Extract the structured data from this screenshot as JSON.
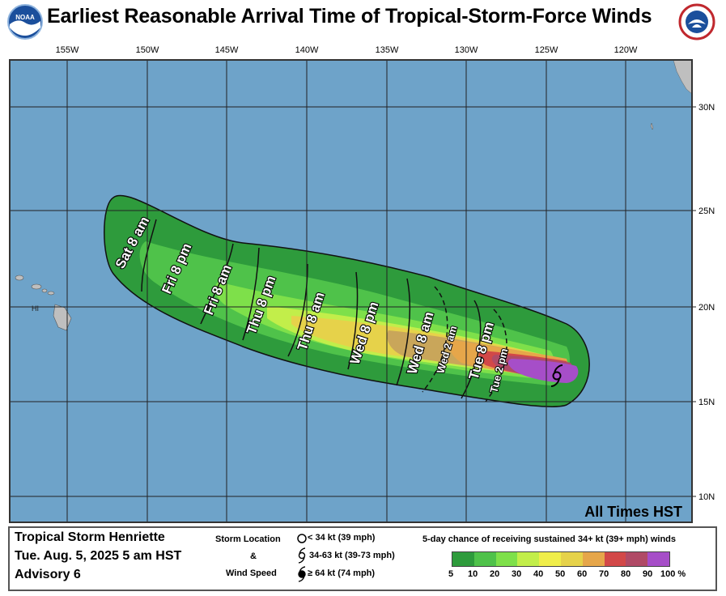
{
  "title": "Earliest Reasonable Arrival Time of Tropical-Storm-Force Winds",
  "logos": {
    "left": "NOAA",
    "right": "NATIONAL WEATHER SERVICE"
  },
  "colors": {
    "ocean": "#6ea3c9",
    "land": "#bfbfbf",
    "grid": "#222222",
    "border": "#333333"
  },
  "map": {
    "lon_labels": [
      "155W",
      "150W",
      "145W",
      "140W",
      "135W",
      "130W",
      "125W",
      "120W"
    ],
    "lat_labels": [
      "30N",
      "25N",
      "20N",
      "15N",
      "10N"
    ],
    "land_label": "HI",
    "timezone_note": "All Times HST",
    "time_labels": [
      "Sat 8 am",
      "Fri 8 pm",
      "Fri 8 am",
      "Thu 8 pm",
      "Thu 8 am",
      "Wed 8 pm",
      "Wed 8 am",
      "Wed 2 am",
      "Tue 8 pm",
      "Tue 2 pm"
    ],
    "storm_icon": "tropical-storm-icon"
  },
  "info": {
    "storm_name": "Tropical Storm Henriette",
    "datetime": "Tue. Aug. 5, 2025  5 am HST",
    "advisory": "Advisory 6"
  },
  "legend_storm": {
    "label_top": "Storm Location",
    "label_mid": "&",
    "label_bottom": "Wind Speed",
    "items": [
      "< 34 kt (39 mph)",
      "34-63 kt (39-73 mph)",
      "≥ 64 kt (74 mph)"
    ]
  },
  "legend_prob": {
    "title": "5-day chance of receiving sustained 34+ kt (39+ mph) winds",
    "ticks": [
      "5",
      "10",
      "20",
      "30",
      "40",
      "50",
      "60",
      "70",
      "80",
      "90",
      "100 %"
    ],
    "colors": [
      "#2e9b3c",
      "#4fc24a",
      "#7ee04a",
      "#c2ee4a",
      "#f0ee4a",
      "#e6d24a",
      "#e6a64a",
      "#e07a42",
      "#d24848",
      "#b04a66",
      "#a64ec8"
    ]
  }
}
